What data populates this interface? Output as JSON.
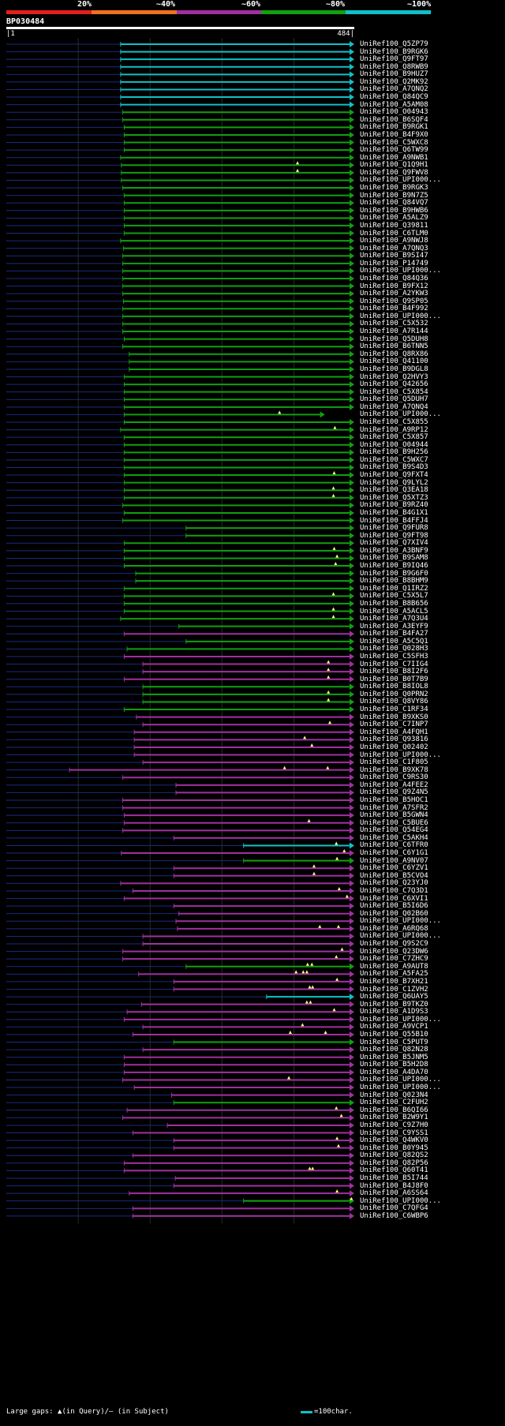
{
  "colors": {
    "cat20": "#e02020",
    "cat40": "#f07020",
    "cat60": "#a030a0",
    "cat80": "#10a010",
    "cat100": "#10c0c8",
    "background": "#000000",
    "query_bar": "#ffffff",
    "unaligned": "#1a2a80",
    "grid": "#203020",
    "gap_marker": "#ffff80"
  },
  "legend": {
    "items": [
      {
        "label": "20%",
        "color_key": "cat20"
      },
      {
        "label": "~40%",
        "color_key": "cat40"
      },
      {
        "label": "~60%",
        "color_key": "cat60"
      },
      {
        "label": "~80%",
        "color_key": "cat80"
      },
      {
        "label": "~100%",
        "color_key": "cat100"
      }
    ]
  },
  "query": {
    "name": "BP030484",
    "start": "1",
    "end": "484",
    "length": 484
  },
  "hits": [
    {
      "label": "UniRef100_Q5ZP79",
      "cat": 5,
      "s": 159,
      "e": 484
    },
    {
      "label": "UniRef100_B9RGK6",
      "cat": 5,
      "s": 159,
      "e": 484
    },
    {
      "label": "UniRef100_Q9FT97",
      "cat": 5,
      "s": 159,
      "e": 484
    },
    {
      "label": "UniRef100_Q8RWB9",
      "cat": 5,
      "s": 159,
      "e": 484
    },
    {
      "label": "UniRef100_B9HUZ7",
      "cat": 5,
      "s": 159,
      "e": 484
    },
    {
      "label": "UniRef100_Q2MK92",
      "cat": 5,
      "s": 159,
      "e": 484
    },
    {
      "label": "UniRef100_A7QNQ2",
      "cat": 5,
      "s": 159,
      "e": 484
    },
    {
      "label": "UniRef100_Q84QC9",
      "cat": 5,
      "s": 159,
      "e": 484
    },
    {
      "label": "UniRef100_A5AM08",
      "cat": 5,
      "s": 159,
      "e": 484
    },
    {
      "label": "UniRef100_O04943",
      "cat": 4,
      "s": 162,
      "e": 484
    },
    {
      "label": "UniRef100_B6SQF4",
      "cat": 4,
      "s": 162,
      "e": 484
    },
    {
      "label": "UniRef100_B9RGK1",
      "cat": 4,
      "s": 164,
      "e": 484
    },
    {
      "label": "UniRef100_B4F9X0",
      "cat": 4,
      "s": 164,
      "e": 484
    },
    {
      "label": "UniRef100_C5WXC8",
      "cat": 4,
      "s": 164,
      "e": 484
    },
    {
      "label": "UniRef100_Q6TW99",
      "cat": 4,
      "s": 164,
      "e": 484
    },
    {
      "label": "UniRef100_A9NWB1",
      "cat": 4,
      "s": 159,
      "e": 484
    },
    {
      "label": "UniRef100_Q1Q9H1",
      "cat": 4,
      "s": 160,
      "e": 484,
      "g": [
        405
      ]
    },
    {
      "label": "UniRef100_Q9FWV8",
      "cat": 4,
      "s": 160,
      "e": 484,
      "g": [
        405
      ]
    },
    {
      "label": "UniRef100_UPI000...",
      "cat": 4,
      "s": 160,
      "e": 484
    },
    {
      "label": "UniRef100_B9RGK3",
      "cat": 4,
      "s": 162,
      "e": 484
    },
    {
      "label": "UniRef100_B9N7Z5",
      "cat": 4,
      "s": 164,
      "e": 484
    },
    {
      "label": "UniRef100_Q84VQ7",
      "cat": 4,
      "s": 164,
      "e": 484
    },
    {
      "label": "UniRef100_B9HWB6",
      "cat": 4,
      "s": 164,
      "e": 484
    },
    {
      "label": "UniRef100_A5ALZ9",
      "cat": 4,
      "s": 164,
      "e": 484
    },
    {
      "label": "UniRef100_Q39811",
      "cat": 4,
      "s": 164,
      "e": 484
    },
    {
      "label": "UniRef100_C6TLM0",
      "cat": 4,
      "s": 164,
      "e": 484
    },
    {
      "label": "UniRef100_A9NWJ8",
      "cat": 4,
      "s": 159,
      "e": 484
    },
    {
      "label": "UniRef100_A7QNQ3",
      "cat": 4,
      "s": 163,
      "e": 484
    },
    {
      "label": "UniRef100_B9SI47",
      "cat": 4,
      "s": 162,
      "e": 484
    },
    {
      "label": "UniRef100_P14749",
      "cat": 4,
      "s": 162,
      "e": 484
    },
    {
      "label": "UniRef100_UPI000...",
      "cat": 4,
      "s": 162,
      "e": 484
    },
    {
      "label": "UniRef100_Q84Q36",
      "cat": 4,
      "s": 162,
      "e": 484
    },
    {
      "label": "UniRef100_B9FX12",
      "cat": 4,
      "s": 162,
      "e": 484
    },
    {
      "label": "UniRef100_A2YKW3",
      "cat": 4,
      "s": 162,
      "e": 484
    },
    {
      "label": "UniRef100_Q9SP05",
      "cat": 4,
      "s": 163,
      "e": 484
    },
    {
      "label": "UniRef100_B4F992",
      "cat": 4,
      "s": 162,
      "e": 484
    },
    {
      "label": "UniRef100_UPI000...",
      "cat": 4,
      "s": 162,
      "e": 484
    },
    {
      "label": "UniRef100_C5X532",
      "cat": 4,
      "s": 162,
      "e": 484
    },
    {
      "label": "UniRef100_A7R144",
      "cat": 4,
      "s": 162,
      "e": 484
    },
    {
      "label": "UniRef100_Q5DUH8",
      "cat": 4,
      "s": 164,
      "e": 484
    },
    {
      "label": "UniRef100_B6TNN5",
      "cat": 4,
      "s": 162,
      "e": 484
    },
    {
      "label": "UniRef100_Q8RX86",
      "cat": 4,
      "s": 171,
      "e": 484
    },
    {
      "label": "UniRef100_Q41100",
      "cat": 4,
      "s": 171,
      "e": 484
    },
    {
      "label": "UniRef100_B9DGL8",
      "cat": 4,
      "s": 171,
      "e": 484
    },
    {
      "label": "UniRef100_Q2HVY3",
      "cat": 4,
      "s": 164,
      "e": 484
    },
    {
      "label": "UniRef100_Q42656",
      "cat": 4,
      "s": 164,
      "e": 484
    },
    {
      "label": "UniRef100_C5X854",
      "cat": 4,
      "s": 164,
      "e": 484
    },
    {
      "label": "UniRef100_Q5DUH7",
      "cat": 4,
      "s": 164,
      "e": 484
    },
    {
      "label": "UniRef100_A7QNQ4",
      "cat": 4,
      "s": 164,
      "e": 484
    },
    {
      "label": "UniRef100_UPI000...",
      "cat": 4,
      "s": 164,
      "e": 443,
      "g": [
        380
      ]
    },
    {
      "label": "UniRef100_C5X855",
      "cat": 4,
      "s": 164,
      "e": 484
    },
    {
      "label": "UniRef100_A9RP12",
      "cat": 4,
      "s": 159,
      "e": 484,
      "g": [
        457
      ]
    },
    {
      "label": "UniRef100_C5X857",
      "cat": 4,
      "s": 164,
      "e": 484
    },
    {
      "label": "UniRef100_O04944",
      "cat": 4,
      "s": 164,
      "e": 484
    },
    {
      "label": "UniRef100_B9H256",
      "cat": 4,
      "s": 164,
      "e": 484
    },
    {
      "label": "UniRef100_C5WXC7",
      "cat": 4,
      "s": 164,
      "e": 484
    },
    {
      "label": "UniRef100_B9S4D3",
      "cat": 4,
      "s": 164,
      "e": 484
    },
    {
      "label": "UniRef100_Q9FXT4",
      "cat": 4,
      "s": 164,
      "e": 484,
      "g": [
        456
      ]
    },
    {
      "label": "UniRef100_Q9LYL2",
      "cat": 4,
      "s": 164,
      "e": 484
    },
    {
      "label": "UniRef100_Q3EA18",
      "cat": 4,
      "s": 164,
      "e": 484,
      "g": [
        455
      ]
    },
    {
      "label": "UniRef100_Q5XTZ3",
      "cat": 4,
      "s": 164,
      "e": 484,
      "g": [
        455
      ]
    },
    {
      "label": "UniRef100_B9RZ40",
      "cat": 4,
      "s": 162,
      "e": 484
    },
    {
      "label": "UniRef100_B4G1X1",
      "cat": 4,
      "s": 164,
      "e": 484
    },
    {
      "label": "UniRef100_B4FFJ4",
      "cat": 4,
      "s": 162,
      "e": 484
    },
    {
      "label": "UniRef100_Q9FUR8",
      "cat": 4,
      "s": 250,
      "e": 484
    },
    {
      "label": "UniRef100_Q9FT98",
      "cat": 4,
      "s": 250,
      "e": 484
    },
    {
      "label": "UniRef100_Q7XIV4",
      "cat": 4,
      "s": 164,
      "e": 484
    },
    {
      "label": "UniRef100_A3BNF9",
      "cat": 4,
      "s": 164,
      "e": 484,
      "g": [
        456
      ]
    },
    {
      "label": "UniRef100_B9SAM8",
      "cat": 4,
      "s": 164,
      "e": 484,
      "g": [
        460
      ]
    },
    {
      "label": "UniRef100_B9IQ46",
      "cat": 4,
      "s": 164,
      "e": 484,
      "g": [
        458
      ]
    },
    {
      "label": "UniRef100_B9G6F0",
      "cat": 4,
      "s": 180,
      "e": 484
    },
    {
      "label": "UniRef100_B8BHM9",
      "cat": 4,
      "s": 180,
      "e": 484
    },
    {
      "label": "UniRef100_Q1IRZ2",
      "cat": 4,
      "s": 164,
      "e": 484
    },
    {
      "label": "UniRef100_C5X5L7",
      "cat": 4,
      "s": 164,
      "e": 484,
      "g": [
        455
      ]
    },
    {
      "label": "UniRef100_B8B656",
      "cat": 4,
      "s": 164,
      "e": 484
    },
    {
      "label": "UniRef100_A5ACL5",
      "cat": 4,
      "s": 164,
      "e": 484,
      "g": [
        455
      ]
    },
    {
      "label": "UniRef100_A7Q3U4",
      "cat": 4,
      "s": 159,
      "e": 484,
      "g": [
        455
      ]
    },
    {
      "label": "UniRef100_A3EYF9",
      "cat": 4,
      "s": 240,
      "e": 484
    },
    {
      "label": "UniRef100_B4FA27",
      "cat": 3,
      "s": 164,
      "e": 484
    },
    {
      "label": "UniRef100_A5C5Q1",
      "cat": 4,
      "s": 250,
      "e": 484
    },
    {
      "label": "UniRef100_Q028H3",
      "cat": 4,
      "s": 168,
      "e": 484
    },
    {
      "label": "UniRef100_C5SFH3",
      "cat": 3,
      "s": 164,
      "e": 484
    },
    {
      "label": "UniRef100_C7IIG4",
      "cat": 3,
      "s": 190,
      "e": 484,
      "g": [
        448
      ]
    },
    {
      "label": "UniRef100_B8I2F6",
      "cat": 3,
      "s": 190,
      "e": 484,
      "g": [
        448
      ]
    },
    {
      "label": "UniRef100_B0T7B9",
      "cat": 3,
      "s": 164,
      "e": 484,
      "g": [
        448
      ]
    },
    {
      "label": "UniRef100_B8IOL8",
      "cat": 4,
      "s": 190,
      "e": 484
    },
    {
      "label": "UniRef100_Q0PRN2",
      "cat": 4,
      "s": 190,
      "e": 484,
      "g": [
        448
      ]
    },
    {
      "label": "UniRef100_Q8VY86",
      "cat": 4,
      "s": 190,
      "e": 484,
      "g": [
        448
      ]
    },
    {
      "label": "UniRef100_C1RF34",
      "cat": 4,
      "s": 164,
      "e": 484
    },
    {
      "label": "UniRef100_B9XKS0",
      "cat": 3,
      "s": 181,
      "e": 484
    },
    {
      "label": "UniRef100_C7INP7",
      "cat": 3,
      "s": 190,
      "e": 484,
      "g": [
        450
      ]
    },
    {
      "label": "UniRef100_A4FQH1",
      "cat": 3,
      "s": 178,
      "e": 484
    },
    {
      "label": "UniRef100_Q93816",
      "cat": 3,
      "s": 178,
      "e": 484,
      "g": [
        415
      ]
    },
    {
      "label": "UniRef100_Q02402",
      "cat": 3,
      "s": 178,
      "e": 484,
      "g": [
        425
      ]
    },
    {
      "label": "UniRef100_UPI000...",
      "cat": 3,
      "s": 178,
      "e": 484
    },
    {
      "label": "UniRef100_C1F805",
      "cat": 3,
      "s": 190,
      "e": 484
    },
    {
      "label": "UniRef100_B9XK78",
      "cat": 3,
      "s": 88,
      "e": 484,
      "g": [
        387,
        447
      ]
    },
    {
      "label": "UniRef100_C9RS30",
      "cat": 3,
      "s": 162,
      "e": 484
    },
    {
      "label": "UniRef100_A4FEE2",
      "cat": 3,
      "s": 236,
      "e": 484
    },
    {
      "label": "UniRef100_Q9Z4N5",
      "cat": 3,
      "s": 236,
      "e": 484
    },
    {
      "label": "UniRef100_B5HOC1",
      "cat": 3,
      "s": 162,
      "e": 484
    },
    {
      "label": "UniRef100_A7SFR2",
      "cat": 3,
      "s": 162,
      "e": 484
    },
    {
      "label": "UniRef100_B5GWN4",
      "cat": 3,
      "s": 164,
      "e": 484
    },
    {
      "label": "UniRef100_C5BUE6",
      "cat": 3,
      "s": 164,
      "e": 484,
      "g": [
        421
      ]
    },
    {
      "label": "UniRef100_Q54EG4",
      "cat": 3,
      "s": 162,
      "e": 484
    },
    {
      "label": "UniRef100_C5AKH4",
      "cat": 3,
      "s": 233,
      "e": 484
    },
    {
      "label": "UniRef100_C6TFR0",
      "cat": 5,
      "s": 330,
      "e": 484,
      "g": [
        459
      ]
    },
    {
      "label": "UniRef100_C6Y1G1",
      "cat": 3,
      "s": 160,
      "e": 484,
      "g": [
        470
      ]
    },
    {
      "label": "UniRef100_A9NV07",
      "cat": 4,
      "s": 330,
      "e": 484,
      "g": [
        460
      ]
    },
    {
      "label": "UniRef100_C6YZV1",
      "cat": 3,
      "s": 233,
      "e": 484,
      "g": [
        428
      ]
    },
    {
      "label": "UniRef100_B5CVO4",
      "cat": 3,
      "s": 233,
      "e": 484,
      "g": [
        428
      ]
    },
    {
      "label": "UniRef100_Q23YJ0",
      "cat": 3,
      "s": 159,
      "e": 484
    },
    {
      "label": "UniRef100_C7Q3D1",
      "cat": 3,
      "s": 176,
      "e": 484,
      "g": [
        463
      ]
    },
    {
      "label": "UniRef100_C6XVI1",
      "cat": 3,
      "s": 164,
      "e": 484,
      "g": [
        474
      ]
    },
    {
      "label": "UniRef100_B5I6D6",
      "cat": 3,
      "s": 233,
      "e": 484
    },
    {
      "label": "UniRef100_Q02B60",
      "cat": 3,
      "s": 240,
      "e": 484
    },
    {
      "label": "UniRef100_UPI000...",
      "cat": 3,
      "s": 236,
      "e": 484
    },
    {
      "label": "UniRef100_A6RQ68",
      "cat": 3,
      "s": 238,
      "e": 484,
      "g": [
        436,
        462
      ]
    },
    {
      "label": "UniRef100_UPI000...",
      "cat": 3,
      "s": 190,
      "e": 484
    },
    {
      "label": "UniRef100_Q9S2C9",
      "cat": 3,
      "s": 190,
      "e": 484
    },
    {
      "label": "UniRef100_Q23DW6",
      "cat": 3,
      "s": 162,
      "e": 484,
      "g": [
        467
      ]
    },
    {
      "label": "UniRef100_C7ZHC9",
      "cat": 3,
      "s": 162,
      "e": 484,
      "g": [
        459
      ]
    },
    {
      "label": "UniRef100_A9AUT8",
      "cat": 4,
      "s": 250,
      "e": 484,
      "g": [
        419,
        425
      ]
    },
    {
      "label": "UniRef100_A5FA25",
      "cat": 3,
      "s": 184,
      "e": 484,
      "g": [
        403,
        413,
        418
      ]
    },
    {
      "label": "UniRef100_B7XH21",
      "cat": 3,
      "s": 233,
      "e": 484,
      "g": [
        460
      ]
    },
    {
      "label": "UniRef100_C1ZVH2",
      "cat": 3,
      "s": 233,
      "e": 484,
      "g": [
        422,
        426
      ]
    },
    {
      "label": "UniRef100_Q6UAY5",
      "cat": 5,
      "s": 362,
      "e": 484
    },
    {
      "label": "UniRef100_B9TKZ0",
      "cat": 3,
      "s": 188,
      "e": 484,
      "g": [
        418,
        423
      ]
    },
    {
      "label": "UniRef100_A1D9S3",
      "cat": 3,
      "s": 168,
      "e": 484,
      "g": [
        456
      ]
    },
    {
      "label": "UniRef100_UPI000...",
      "cat": 3,
      "s": 164,
      "e": 484
    },
    {
      "label": "UniRef100_A9VCP1",
      "cat": 3,
      "s": 190,
      "e": 484,
      "g": [
        412
      ]
    },
    {
      "label": "UniRef100_Q55B10",
      "cat": 3,
      "s": 176,
      "e": 484,
      "g": [
        395,
        444
      ]
    },
    {
      "label": "UniRef100_C5PUT9",
      "cat": 4,
      "s": 233,
      "e": 484
    },
    {
      "label": "UniRef100_Q82N28",
      "cat": 3,
      "s": 190,
      "e": 484
    },
    {
      "label": "UniRef100_B5JNM5",
      "cat": 3,
      "s": 164,
      "e": 484
    },
    {
      "label": "UniRef100_B5H2D8",
      "cat": 3,
      "s": 164,
      "e": 484
    },
    {
      "label": "UniRef100_A4DA70",
      "cat": 3,
      "s": 164,
      "e": 484
    },
    {
      "label": "UniRef100_UPI000...",
      "cat": 3,
      "s": 162,
      "e": 484,
      "g": [
        393
      ]
    },
    {
      "label": "UniRef100_UPI000...",
      "cat": 3,
      "s": 178,
      "e": 484
    },
    {
      "label": "UniRef100_Q023N4",
      "cat": 3,
      "s": 230,
      "e": 484
    },
    {
      "label": "UniRef100_C2FUH2",
      "cat": 4,
      "s": 233,
      "e": 484
    },
    {
      "label": "UniRef100_B6QI66",
      "cat": 3,
      "s": 168,
      "e": 484,
      "g": [
        459
      ]
    },
    {
      "label": "UniRef100_B2W9Y1",
      "cat": 3,
      "s": 162,
      "e": 484,
      "g": [
        466
      ]
    },
    {
      "label": "UniRef100_C9Z7H0",
      "cat": 3,
      "s": 224,
      "e": 484
    },
    {
      "label": "UniRef100_C9YSS1",
      "cat": 3,
      "s": 176,
      "e": 484
    },
    {
      "label": "UniRef100_Q4WKV0",
      "cat": 3,
      "s": 233,
      "e": 484,
      "g": [
        460
      ]
    },
    {
      "label": "UniRef100_B0Y945",
      "cat": 3,
      "s": 233,
      "e": 484,
      "g": [
        462
      ]
    },
    {
      "label": "UniRef100_Q82QS2",
      "cat": 3,
      "s": 176,
      "e": 484
    },
    {
      "label": "UniRef100_Q82P56",
      "cat": 3,
      "s": 164,
      "e": 484
    },
    {
      "label": "UniRef100_Q60T41",
      "cat": 3,
      "s": 164,
      "e": 484,
      "g": [
        422,
        426
      ]
    },
    {
      "label": "UniRef100_B5I744",
      "cat": 3,
      "s": 235,
      "e": 484
    },
    {
      "label": "UniRef100_B4J8F0",
      "cat": 3,
      "s": 233,
      "e": 484
    },
    {
      "label": "UniRef100_A6SS64",
      "cat": 3,
      "s": 171,
      "e": 484,
      "g": [
        460
      ]
    },
    {
      "label": "UniRef100_UPI000...",
      "cat": 4,
      "s": 330,
      "e": 484,
      "g": [
        480
      ]
    },
    {
      "label": "UniRef100_C7QFG4",
      "cat": 3,
      "s": 176,
      "e": 484
    },
    {
      "label": "UniRef100_C6WBP6",
      "cat": 3,
      "s": 176,
      "e": 484
    }
  ],
  "footer": {
    "gaps_text": "Large gaps: ▲(in Query)/– (in Subject)",
    "scale_text": "=100char."
  }
}
